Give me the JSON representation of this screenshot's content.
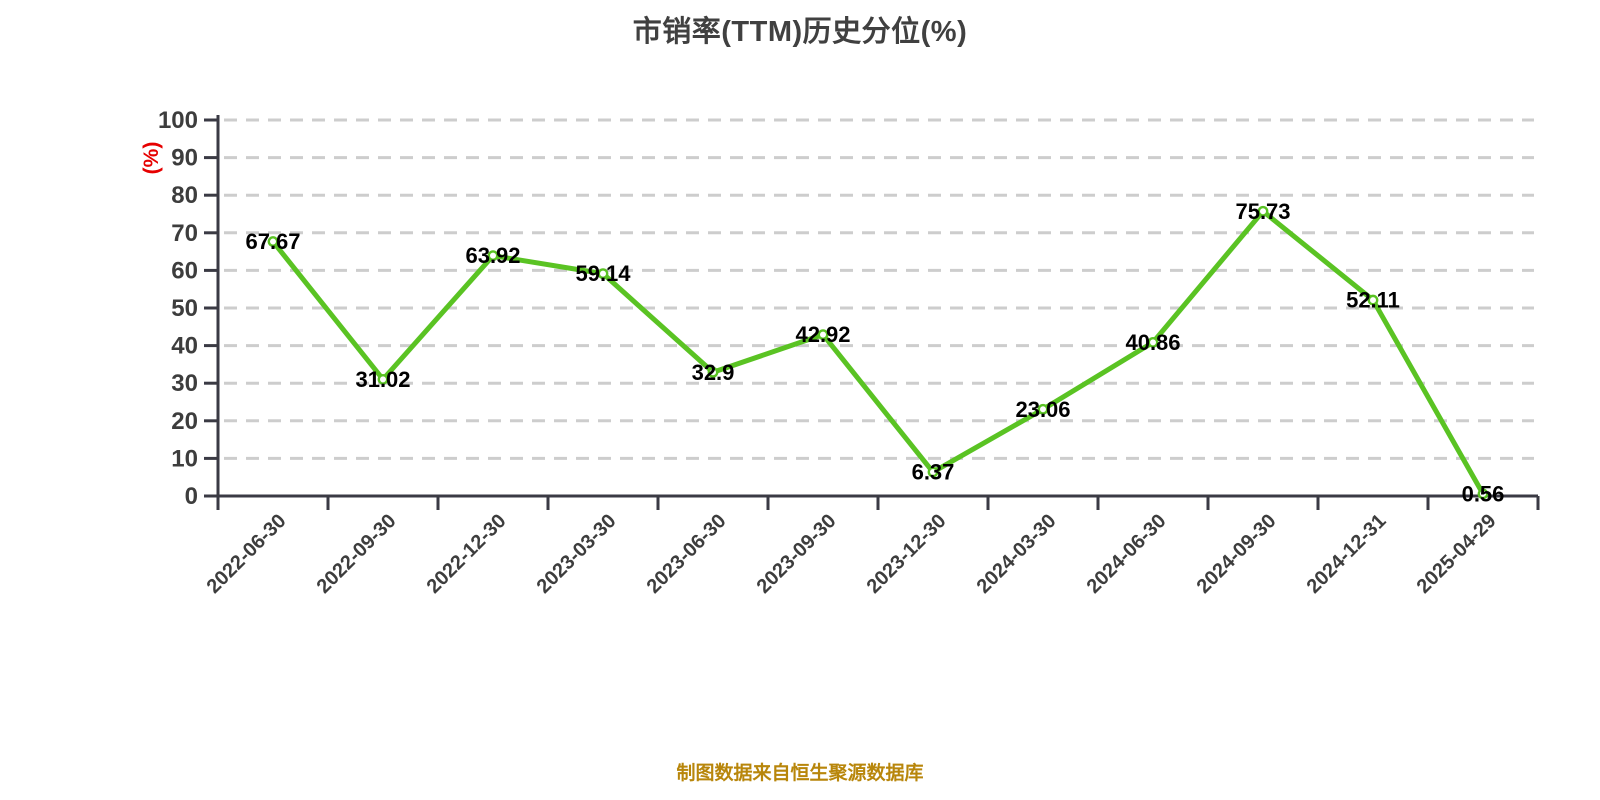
{
  "chart_data": {
    "type": "line",
    "title": "市销率(TTM)历史分位(%)",
    "y_axis_unit": "(%)",
    "footer": "制图数据来自恒生聚源数据库",
    "categories": [
      "2022-06-30",
      "2022-09-30",
      "2022-12-30",
      "2023-03-30",
      "2023-06-30",
      "2023-09-30",
      "2023-12-30",
      "2024-03-30",
      "2024-06-30",
      "2024-09-30",
      "2024-12-31",
      "2025-04-29"
    ],
    "values": [
      67.67,
      31.02,
      63.92,
      59.14,
      32.9,
      42.92,
      6.37,
      23.06,
      40.86,
      75.73,
      52.11,
      0.56
    ],
    "point_labels": [
      "67.67",
      "31.02",
      "63.92",
      "59.14",
      "32.9",
      "42.92",
      "6.37",
      "23.06",
      "40.86",
      "75.73",
      "52.11",
      "0.56"
    ],
    "ylim": [
      0,
      100
    ],
    "ytick_step": 10,
    "yticks": [
      0,
      10,
      20,
      30,
      40,
      50,
      60,
      70,
      80,
      90,
      100
    ],
    "grid": "horizontal-dashed",
    "legend": "none",
    "x_label_rotation": 45,
    "colors": {
      "line": "#5ac323",
      "point_fill": "#ffffff",
      "point_stroke": "#5ac323",
      "value_label": "#000000",
      "axis": "#3a3a44",
      "axis_label": "#3d3d3d",
      "grid": "#cdcdcd",
      "title": "#404040",
      "y_unit_label": "#e60000",
      "footer": "#b8860b",
      "background": "#ffffff"
    }
  }
}
